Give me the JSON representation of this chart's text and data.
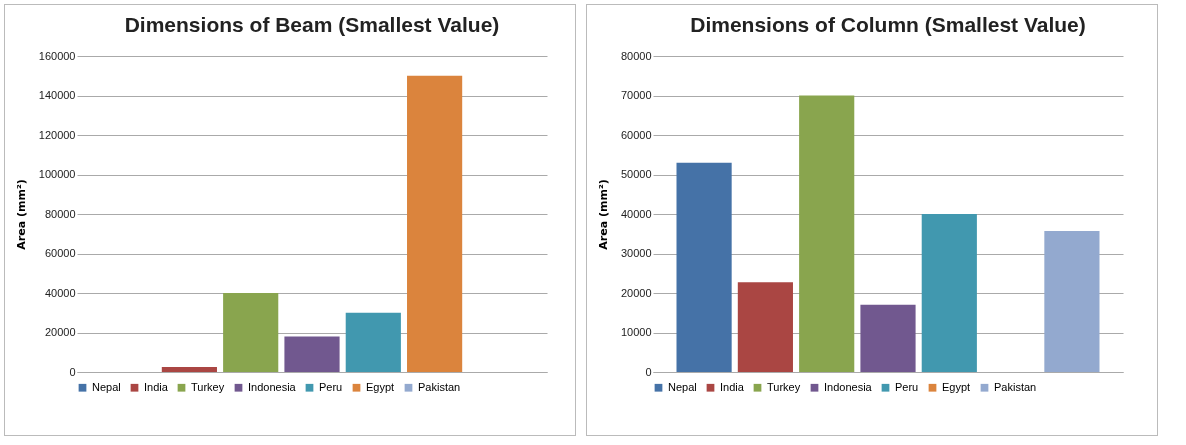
{
  "chart_data": [
    {
      "type": "bar",
      "title": "Dimensions of Beam (Smallest Value)",
      "ylabel": "Area (mm²)",
      "categories": [
        null
      ],
      "ylim": [
        0,
        160000
      ],
      "yticks": [
        0,
        20000,
        40000,
        60000,
        80000,
        100000,
        120000,
        140000,
        160000
      ],
      "grid": "y",
      "legend": "bottom",
      "series": [
        {
          "name": "Nepal",
          "color": "#4572a7",
          "values": [
            null
          ]
        },
        {
          "name": "India",
          "color": "#aa4643",
          "values": [
            2500
          ]
        },
        {
          "name": "Turkey",
          "color": "#89a54e",
          "values": [
            40000
          ]
        },
        {
          "name": "Indonesia",
          "color": "#71588f",
          "values": [
            18000
          ]
        },
        {
          "name": "Peru",
          "color": "#4198af",
          "values": [
            30000
          ]
        },
        {
          "name": "Egypt",
          "color": "#db843d",
          "values": [
            150000
          ]
        },
        {
          "name": "Pakistan",
          "color": "#93a9cf",
          "values": [
            null
          ]
        }
      ]
    },
    {
      "type": "bar",
      "title": "Dimensions of Column (Smallest Value)",
      "ylabel": "Area (mm²)",
      "categories": [
        null
      ],
      "ylim": [
        0,
        80000
      ],
      "yticks": [
        0,
        10000,
        20000,
        30000,
        40000,
        50000,
        60000,
        70000,
        80000
      ],
      "grid": "y",
      "legend": "bottom",
      "series": [
        {
          "name": "Nepal",
          "color": "#4572a7",
          "values": [
            53000
          ]
        },
        {
          "name": "India",
          "color": "#aa4643",
          "values": [
            22700
          ]
        },
        {
          "name": "Turkey",
          "color": "#89a54e",
          "values": [
            70000
          ]
        },
        {
          "name": "Indonesia",
          "color": "#71588f",
          "values": [
            17000
          ]
        },
        {
          "name": "Peru",
          "color": "#4198af",
          "values": [
            40000
          ]
        },
        {
          "name": "Egypt",
          "color": "#db843d",
          "values": [
            null
          ]
        },
        {
          "name": "Pakistan",
          "color": "#93a9cf",
          "values": [
            35700
          ]
        }
      ]
    }
  ]
}
